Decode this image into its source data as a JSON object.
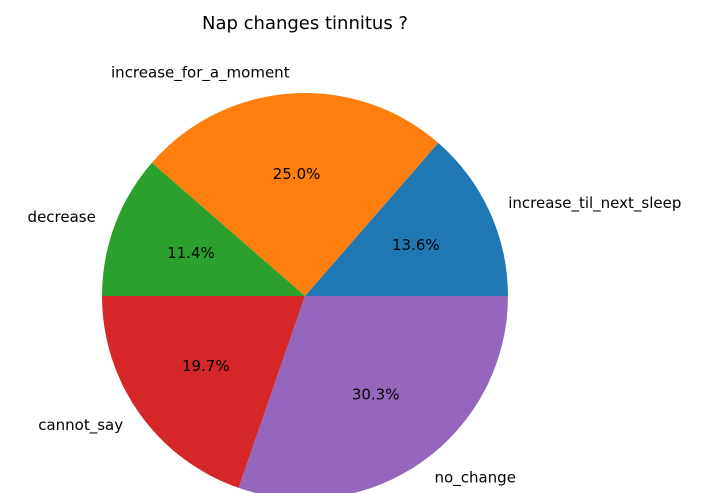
{
  "chart_data": {
    "type": "pie",
    "title": "Nap changes tinnitus ?",
    "categories": [
      "increase_til_next_sleep",
      "increase_for_a_moment",
      "decrease",
      "cannot_say",
      "no_change"
    ],
    "values": [
      13.6,
      25.0,
      11.4,
      19.7,
      30.3
    ],
    "value_labels": [
      "13.6%",
      "25.0%",
      "11.4%",
      "19.7%",
      "30.3%"
    ],
    "colors": [
      "#1f77b4",
      "#ff7f0e",
      "#2ca02c",
      "#d62728",
      "#9467bd"
    ]
  }
}
